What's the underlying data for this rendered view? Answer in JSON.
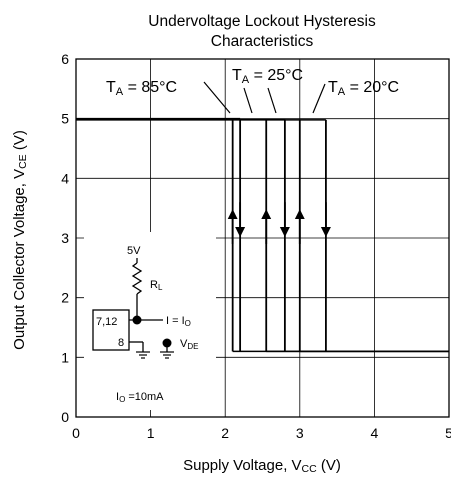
{
  "chart_data": {
    "type": "line",
    "title_lines": [
      "Undervoltage Lockout Hysteresis",
      "Characteristics"
    ],
    "xlabel": {
      "main": "Supply Voltage, V",
      "sub": "CC",
      "unit": " (V)"
    },
    "ylabel": {
      "main": "Output Collector Voltage, V",
      "sub": "CE",
      "unit": " (V)"
    },
    "xlim": [
      0,
      5
    ],
    "ylim": [
      0,
      6
    ],
    "xticks": [
      0,
      1,
      2,
      3,
      4,
      5
    ],
    "yticks": [
      0,
      1,
      2,
      3,
      4,
      5,
      6
    ],
    "grid": true,
    "high_level": 5.0,
    "low_level": 1.1,
    "series": [
      {
        "label": {
          "main": "T",
          "sub": "A",
          "rest": " = 85°C"
        },
        "turn_on": 2.1,
        "turn_off": 2.2
      },
      {
        "label": {
          "main": "T",
          "sub": "A",
          "rest": " = 25°C"
        },
        "turn_on": 2.55,
        "turn_off": 2.8
      },
      {
        "label": {
          "main": "T",
          "sub": "A",
          "rest": " = 20°C"
        },
        "turn_on": 3.0,
        "turn_off": 3.35
      }
    ],
    "inset_circuit": {
      "supply": "5V",
      "resistor": {
        "main": "R",
        "sub": "L"
      },
      "pin_top": "7,12",
      "pin_bottom": "8",
      "current": {
        "main": "I = I",
        "sub": "O"
      },
      "voltage": {
        "main": "V",
        "sub": "DE"
      },
      "condition": {
        "main": "I",
        "sub": "O",
        "rest": " =10mA"
      }
    }
  }
}
